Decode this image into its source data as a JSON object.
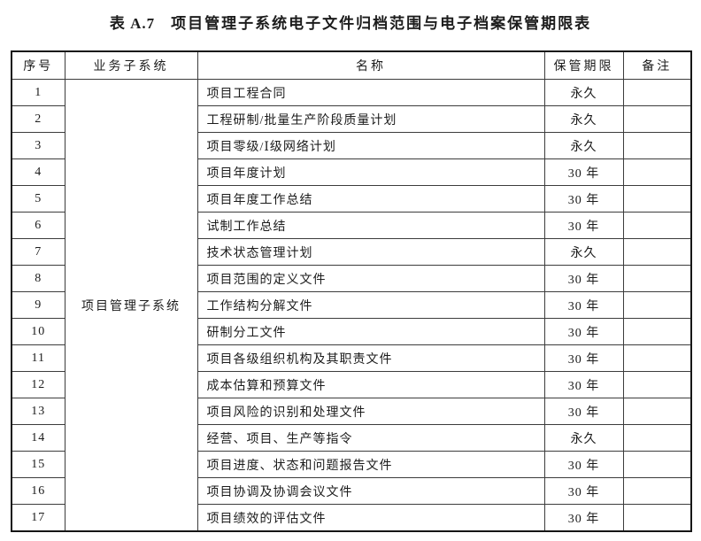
{
  "page": {
    "background_color": "#ffffff",
    "text_color": "#1c1c1c",
    "border_color": "#161616"
  },
  "title": {
    "label": "表 A.7",
    "text": "项目管理子系统电子文件归档范围与电子档案保管期限表"
  },
  "table": {
    "headers": {
      "no": "序号",
      "subsystem": "业务子系统",
      "name": "名称",
      "period": "保管期限",
      "note": "备注"
    },
    "subsystem": "项目管理子系统",
    "rows": [
      {
        "no": "1",
        "name": "项目工程合同",
        "period": "永久",
        "note": ""
      },
      {
        "no": "2",
        "name": "工程研制/批量生产阶段质量计划",
        "period": "永久",
        "note": ""
      },
      {
        "no": "3",
        "name": "项目零级/Ⅰ级网络计划",
        "period": "永久",
        "note": ""
      },
      {
        "no": "4",
        "name": "项目年度计划",
        "period": "30 年",
        "note": ""
      },
      {
        "no": "5",
        "name": "项目年度工作总结",
        "period": "30 年",
        "note": ""
      },
      {
        "no": "6",
        "name": "试制工作总结",
        "period": "30 年",
        "note": ""
      },
      {
        "no": "7",
        "name": "技术状态管理计划",
        "period": "永久",
        "note": ""
      },
      {
        "no": "8",
        "name": "项目范围的定义文件",
        "period": "30 年",
        "note": ""
      },
      {
        "no": "9",
        "name": "工作结构分解文件",
        "period": "30 年",
        "note": ""
      },
      {
        "no": "10",
        "name": "研制分工文件",
        "period": "30 年",
        "note": ""
      },
      {
        "no": "11",
        "name": "项目各级组织机构及其职责文件",
        "period": "30 年",
        "note": ""
      },
      {
        "no": "12",
        "name": "成本估算和预算文件",
        "period": "30 年",
        "note": ""
      },
      {
        "no": "13",
        "name": "项目风险的识别和处理文件",
        "period": "30 年",
        "note": ""
      },
      {
        "no": "14",
        "name": "经营、项目、生产等指令",
        "period": "永久",
        "note": ""
      },
      {
        "no": "15",
        "name": "项目进度、状态和问题报告文件",
        "period": "30 年",
        "note": ""
      },
      {
        "no": "16",
        "name": "项目协调及协调会议文件",
        "period": "30 年",
        "note": ""
      },
      {
        "no": "17",
        "name": "项目绩效的评估文件",
        "period": "30 年",
        "note": ""
      }
    ]
  }
}
